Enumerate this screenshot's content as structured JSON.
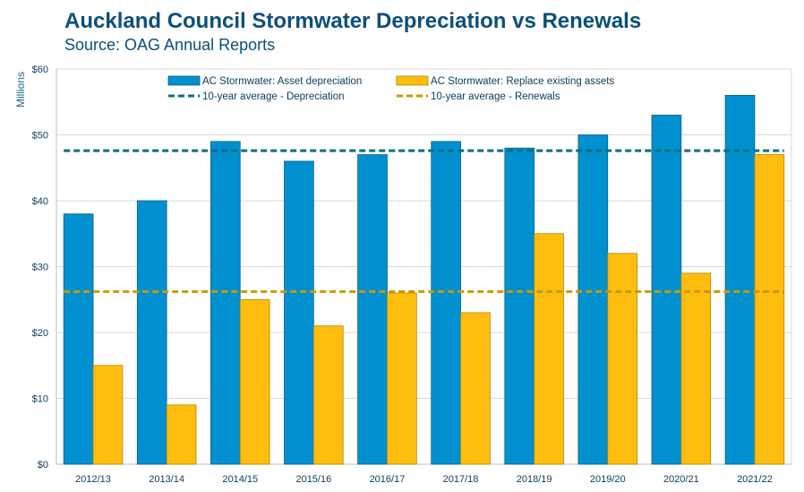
{
  "header": {
    "title": "Auckland Council Stormwater Depreciation vs Renewals",
    "subtitle": "Source: OAG Annual Reports"
  },
  "colors": {
    "depreciation_bar": "#0090d0",
    "renewal_bar": "#ffbe0f",
    "depreciation_avg": "#0b6e7d",
    "renewal_avg": "#c89a00",
    "grid": "#d9d9d9",
    "axis_text": "#0b3b5c"
  },
  "chart_data": {
    "type": "bar",
    "ylabel": "Millions",
    "ylim": [
      0,
      60
    ],
    "yticks": [
      0,
      10,
      20,
      30,
      40,
      50,
      60
    ],
    "ytick_labels": [
      "$0",
      "$10",
      "$20",
      "$30",
      "$40",
      "$50",
      "$60"
    ],
    "grid": true,
    "legend_position": "top",
    "categories": [
      "2012/13",
      "2013/14",
      "2014/15",
      "2015/16",
      "2016/17",
      "2017/18",
      "2018/19",
      "2019/20",
      "2020/21",
      "2021/22"
    ],
    "series": [
      {
        "name": "AC Stormwater: Asset depreciation",
        "kind": "bar",
        "values": [
          38,
          40,
          49,
          46,
          47,
          49,
          48,
          50,
          53,
          56
        ]
      },
      {
        "name": "AC Stormwater: Replace existing assets",
        "kind": "bar",
        "values": [
          15,
          9,
          25,
          21,
          26,
          23,
          35,
          32,
          29,
          47
        ]
      },
      {
        "name": "10-year average - Depreciation",
        "kind": "line-dashed",
        "value": 47.6
      },
      {
        "name": "10-year average - Renewals",
        "kind": "line-dashed",
        "value": 26.2
      }
    ]
  }
}
